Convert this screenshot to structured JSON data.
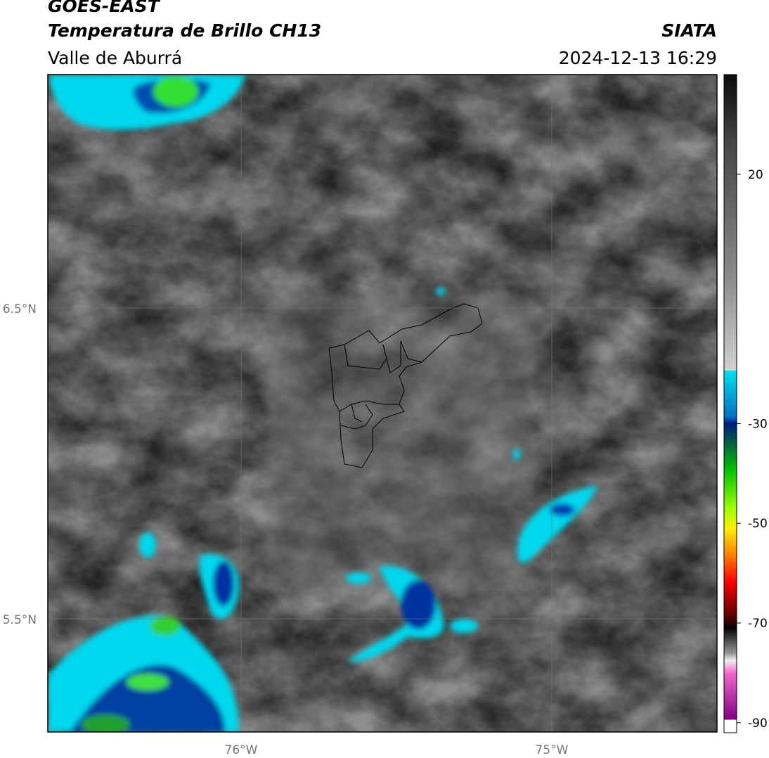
{
  "header": {
    "title": "GOES-EAST",
    "subtitle": "Temperatura de Brillo CH13",
    "region": "Valle de Aburrá",
    "source": "SIATA",
    "datetime": "2024-12-13 16:29"
  },
  "map": {
    "lat_labels": [
      "6.5°N",
      "5.5°N"
    ],
    "lon_labels": [
      "76°W",
      "75°W"
    ]
  },
  "colorbar": {
    "lim": [
      -92,
      40
    ],
    "ticks": [
      20,
      -30,
      -50,
      -70,
      -90
    ]
  }
}
